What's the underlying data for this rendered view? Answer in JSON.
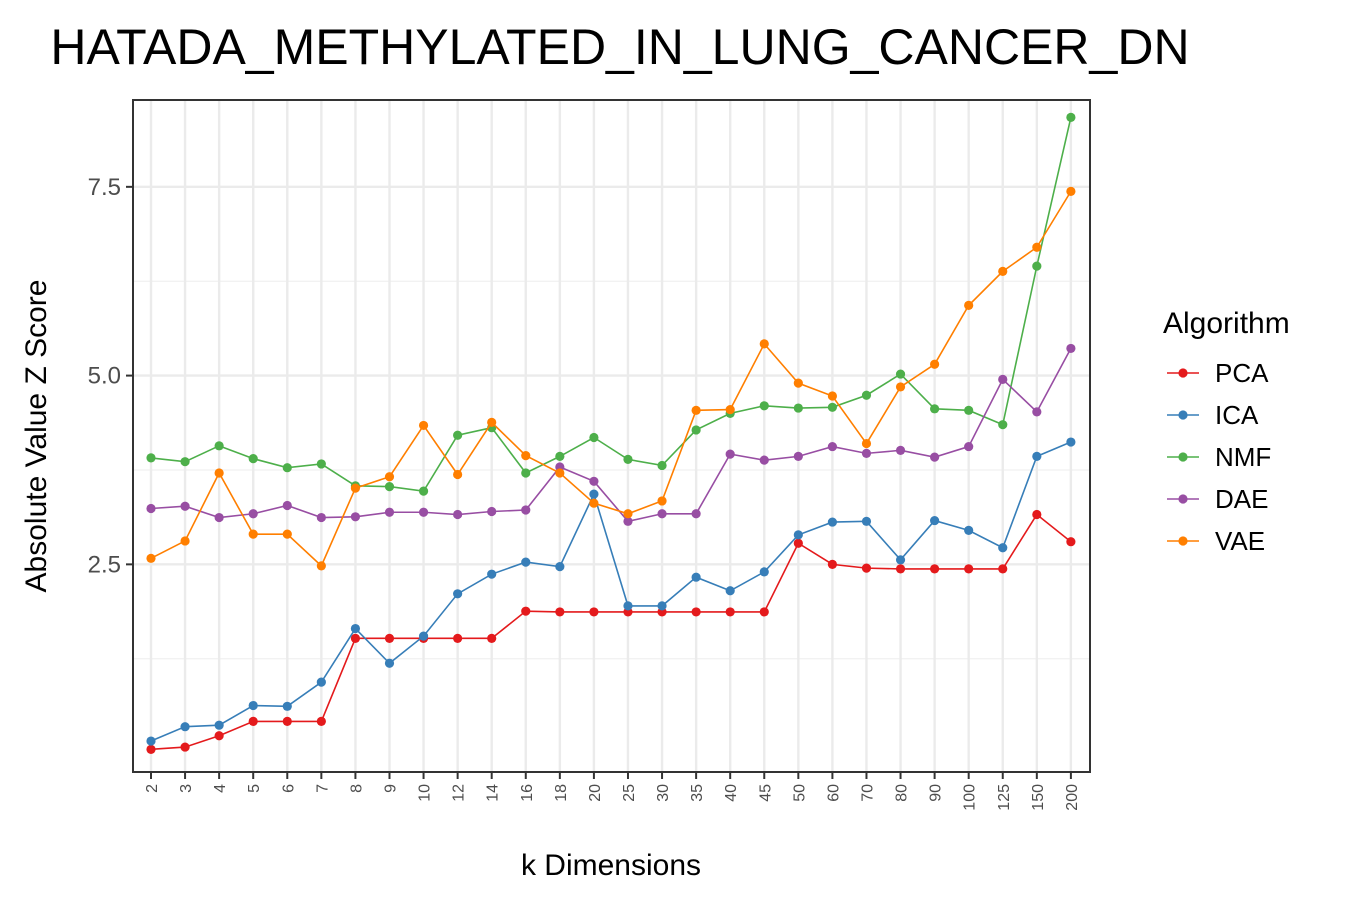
{
  "chart_data": {
    "type": "line",
    "title": "HATADA_METHYLATED_IN_LUNG_CANCER_DN",
    "xlabel": "k Dimensions",
    "ylabel": "Absolute Value Z Score",
    "categories": [
      "2",
      "3",
      "4",
      "5",
      "6",
      "7",
      "8",
      "9",
      "10",
      "12",
      "14",
      "16",
      "18",
      "20",
      "25",
      "30",
      "35",
      "40",
      "45",
      "50",
      "60",
      "70",
      "80",
      "90",
      "100",
      "125",
      "150",
      "200"
    ],
    "yticks": [
      {
        "value": 2.5,
        "label": "2.5"
      },
      {
        "value": 5.0,
        "label": "5.0"
      },
      {
        "value": 7.5,
        "label": "7.5"
      }
    ],
    "ylim": [
      -0.25,
      8.65
    ],
    "grid": true,
    "legend": {
      "title": "Algorithm",
      "position": "right"
    },
    "series": [
      {
        "name": "PCA",
        "color": "#e41a1c",
        "values": [
          0.05,
          0.08,
          0.23,
          0.42,
          0.42,
          0.42,
          1.52,
          1.52,
          1.52,
          1.52,
          1.52,
          1.88,
          1.87,
          1.87,
          1.87,
          1.87,
          1.87,
          1.87,
          1.87,
          2.78,
          2.5,
          2.45,
          2.44,
          2.44,
          2.44,
          2.44,
          3.16,
          2.8
        ]
      },
      {
        "name": "ICA",
        "color": "#377eb8",
        "values": [
          0.16,
          0.35,
          0.37,
          0.63,
          0.62,
          0.94,
          1.65,
          1.19,
          1.55,
          2.11,
          2.37,
          2.53,
          2.47,
          3.43,
          1.95,
          1.95,
          2.33,
          2.15,
          2.4,
          2.89,
          3.06,
          3.07,
          2.56,
          3.08,
          2.95,
          2.72,
          3.93,
          4.12
        ]
      },
      {
        "name": "NMF",
        "color": "#4daf4a",
        "values": [
          3.91,
          3.86,
          4.07,
          3.9,
          3.78,
          3.83,
          3.54,
          3.53,
          3.47,
          4.21,
          4.31,
          3.71,
          3.93,
          4.18,
          3.89,
          3.81,
          4.28,
          4.5,
          4.6,
          4.57,
          4.58,
          4.74,
          5.02,
          4.56,
          4.54,
          4.35,
          6.45,
          8.42
        ]
      },
      {
        "name": "DAE",
        "color": "#984ea3",
        "values": [
          3.24,
          3.27,
          3.12,
          3.17,
          3.28,
          3.12,
          3.13,
          3.19,
          3.19,
          3.16,
          3.2,
          3.22,
          3.79,
          3.6,
          3.07,
          3.17,
          3.17,
          3.96,
          3.88,
          3.93,
          4.06,
          3.97,
          4.01,
          3.92,
          4.06,
          4.95,
          4.52,
          5.36
        ]
      },
      {
        "name": "VAE",
        "color": "#ff7f00",
        "values": [
          2.58,
          2.81,
          3.71,
          2.9,
          2.9,
          2.48,
          3.51,
          3.66,
          4.34,
          3.69,
          4.38,
          3.94,
          3.71,
          3.31,
          3.17,
          3.34,
          4.54,
          4.55,
          5.42,
          4.9,
          4.73,
          4.1,
          4.85,
          5.15,
          5.93,
          6.38,
          6.7,
          7.44
        ]
      }
    ]
  }
}
